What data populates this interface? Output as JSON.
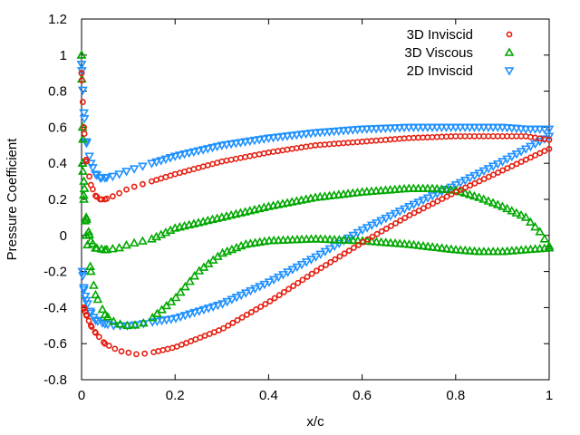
{
  "chart_data": {
    "type": "scatter",
    "title": "",
    "xlabel": "x/c",
    "ylabel": "Pressure Coefficient",
    "xlim": [
      0,
      1
    ],
    "ylim": [
      -0.8,
      1.2
    ],
    "x_ticks": [
      0,
      0.2,
      0.4,
      0.6,
      0.8,
      1
    ],
    "x_tick_labels": [
      "0",
      "0.2",
      "0.4",
      "0.6",
      "0.8",
      "1"
    ],
    "y_ticks": [
      -0.8,
      -0.6,
      -0.4,
      -0.2,
      0,
      0.2,
      0.4,
      0.6,
      0.8,
      1,
      1.2
    ],
    "y_tick_labels": [
      "-0.8",
      "-0.6",
      "-0.4",
      "-0.2",
      "0",
      "0.2",
      "0.4",
      "0.6",
      "0.8",
      "1",
      "1.2"
    ],
    "grid": false,
    "legend_position": "top-right",
    "series": [
      {
        "name": "3D Inviscid",
        "marker": "circle",
        "color": "#e51e10",
        "curves": [
          {
            "part": "upper",
            "x": [
              0,
              0.005,
              0.01,
              0.02,
              0.03,
              0.04,
              0.05,
              0.07,
              0.1,
              0.15,
              0.2,
              0.3,
              0.4,
              0.5,
              0.6,
              0.7,
              0.8,
              0.9,
              0.95,
              1.0
            ],
            "y": [
              0.9,
              0.6,
              0.42,
              0.28,
              0.22,
              0.2,
              0.2,
              0.22,
              0.26,
              0.3,
              0.34,
              0.41,
              0.46,
              0.5,
              0.52,
              0.54,
              0.55,
              0.55,
              0.55,
              0.53
            ]
          },
          {
            "part": "lower",
            "x": [
              0.005,
              0.01,
              0.02,
              0.03,
              0.05,
              0.08,
              0.1,
              0.12,
              0.15,
              0.2,
              0.3,
              0.4,
              0.5,
              0.6,
              0.7,
              0.8,
              0.9,
              0.95,
              1.0
            ],
            "y": [
              -0.4,
              -0.44,
              -0.5,
              -0.54,
              -0.6,
              -0.64,
              -0.65,
              -0.66,
              -0.65,
              -0.62,
              -0.52,
              -0.37,
              -0.2,
              -0.04,
              0.11,
              0.24,
              0.36,
              0.42,
              0.48
            ]
          }
        ]
      },
      {
        "name": "3D Viscous",
        "marker": "triangle-up",
        "color": "#00a800",
        "curves": [
          {
            "part": "upper",
            "x": [
              0,
              0.002,
              0.005,
              0.01,
              0.015,
              0.02,
              0.03,
              0.05,
              0.08,
              0.1,
              0.15,
              0.2,
              0.3,
              0.4,
              0.5,
              0.6,
              0.7,
              0.75,
              0.8,
              0.85,
              0.9,
              0.95,
              0.98,
              1.0
            ],
            "y": [
              1.0,
              0.6,
              0.3,
              0.1,
              0.02,
              -0.03,
              -0.07,
              -0.08,
              -0.07,
              -0.05,
              -0.02,
              0.04,
              0.1,
              0.16,
              0.21,
              0.24,
              0.26,
              0.26,
              0.25,
              0.21,
              0.16,
              0.1,
              0.02,
              -0.06
            ]
          },
          {
            "part": "lower",
            "x": [
              0.002,
              0.005,
              0.01,
              0.02,
              0.03,
              0.05,
              0.07,
              0.09,
              0.11,
              0.13,
              0.15,
              0.2,
              0.25,
              0.3,
              0.35,
              0.4,
              0.5,
              0.6,
              0.7,
              0.8,
              0.85,
              0.9,
              0.95,
              1.0
            ],
            "y": [
              0.4,
              0.2,
              0.0,
              -0.2,
              -0.33,
              -0.44,
              -0.48,
              -0.5,
              -0.5,
              -0.49,
              -0.46,
              -0.35,
              -0.2,
              -0.1,
              -0.05,
              -0.03,
              -0.02,
              -0.03,
              -0.05,
              -0.08,
              -0.09,
              -0.09,
              -0.08,
              -0.07
            ]
          }
        ]
      },
      {
        "name": "2D Inviscid",
        "marker": "triangle-down",
        "color": "#1e90ff",
        "curves": [
          {
            "part": "upper",
            "x": [
              0,
              0.005,
              0.01,
              0.02,
              0.03,
              0.04,
              0.05,
              0.07,
              0.1,
              0.15,
              0.2,
              0.3,
              0.4,
              0.5,
              0.6,
              0.7,
              0.8,
              0.9,
              0.95,
              1.0
            ],
            "y": [
              0.95,
              0.68,
              0.52,
              0.4,
              0.34,
              0.32,
              0.32,
              0.33,
              0.36,
              0.4,
              0.44,
              0.5,
              0.54,
              0.57,
              0.59,
              0.6,
              0.6,
              0.6,
              0.59,
              0.59
            ]
          },
          {
            "part": "lower",
            "x": [
              0.002,
              0.005,
              0.01,
              0.02,
              0.03,
              0.05,
              0.07,
              0.1,
              0.13,
              0.15,
              0.2,
              0.3,
              0.4,
              0.5,
              0.6,
              0.7,
              0.8,
              0.9,
              0.95,
              1.0
            ],
            "y": [
              -0.2,
              -0.3,
              -0.36,
              -0.43,
              -0.47,
              -0.49,
              -0.5,
              -0.5,
              -0.49,
              -0.48,
              -0.46,
              -0.38,
              -0.26,
              -0.12,
              0.03,
              0.16,
              0.28,
              0.41,
              0.48,
              0.55
            ]
          }
        ]
      }
    ]
  }
}
